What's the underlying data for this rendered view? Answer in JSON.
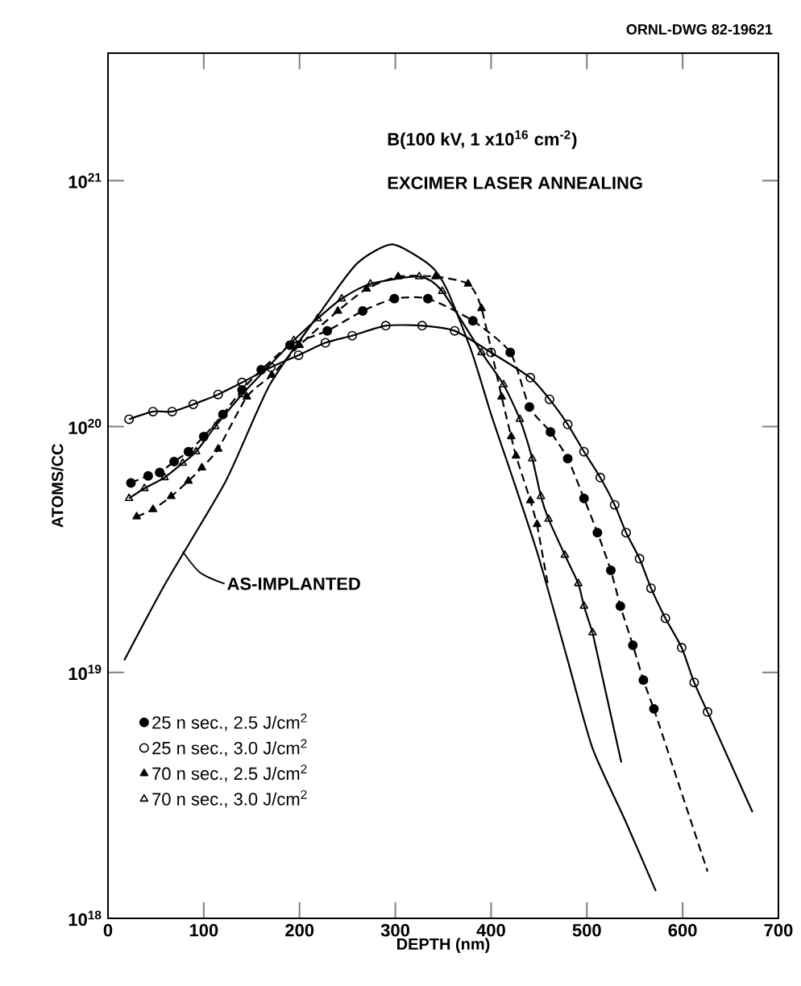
{
  "chart_data": {
    "type": "line",
    "title": "B(100 kV, 1 x10$^{16}$ cm$^{-2}$)",
    "subtitle": "EXCIMER LASER ANNEALING",
    "xlabel": "DEPTH (nm)",
    "ylabel": "ATOMS/CC",
    "log": "y",
    "legend": "bottom left",
    "xlim": [
      0,
      700
    ],
    "xticks": [
      0,
      100,
      200,
      300,
      400,
      500,
      600,
      700
    ],
    "ylim": [
      1e+18,
      3.3e+21
    ],
    "yticks": [
      {
        "value": 1e+18,
        "label": "10$^{18}$"
      },
      {
        "value": 1e+19,
        "label": "10$^{19}$"
      },
      {
        "value": 1e+20,
        "label": "10$^{20}$"
      },
      {
        "value": 1e+21,
        "label": "10$^{21}$"
      }
    ],
    "annotations": [
      "ORNL-DWG 82-19621",
      {
        "text": "AS-IMPLANTED",
        "x": 78,
        "y": 3.1e+19
      }
    ],
    "series": [
      {
        "name": "25 n sec., 2.5 J/cm$^{2}$",
        "type": "line",
        "marker": "circle",
        "line_style": "dashed",
        "color": "#000000",
        "x": [
          24,
          42,
          54,
          69,
          84,
          100,
          120,
          140,
          160,
          190,
          229,
          266,
          299,
          334,
          381,
          420,
          440,
          462,
          480,
          497,
          511,
          525,
          535,
          548,
          559,
          570
        ],
        "values": [
          5.9e+19,
          6.3e+19,
          6.5e+19,
          7.2e+19,
          7.9e+19,
          9.1e+19,
          1.12e+20,
          1.41e+20,
          1.7e+20,
          2.14e+20,
          2.45e+20,
          2.95e+20,
          3.31e+20,
          3.31e+20,
          2.69e+20,
          2e+20,
          1.2e+20,
          9.5e+19,
          7.4e+19,
          5.1e+19,
          3.7e+19,
          2.6e+19,
          1.86e+19,
          1.29e+19,
          9.3e+18,
          7.1e+18
        ]
      },
      {
        "name": "25 n sec., 3.0 J/cm$^{2}$",
        "type": "line",
        "marker": "circle-open",
        "line_style": "solid",
        "color": "#000000",
        "x": [
          22,
          47,
          67,
          89,
          115,
          140,
          170,
          199,
          227,
          255,
          290,
          328,
          362,
          400,
          441,
          461,
          480,
          497,
          514,
          529,
          541,
          555,
          567,
          582,
          599,
          612,
          626
        ],
        "values": [
          1.07e+20,
          1.15e+20,
          1.15e+20,
          1.23e+20,
          1.35e+20,
          1.51e+20,
          1.74e+20,
          1.95e+20,
          2.19e+20,
          2.34e+20,
          2.57e+20,
          2.57e+20,
          2.45e+20,
          2e+20,
          1.58e+20,
          1.29e+20,
          1.02e+20,
          7.9e+19,
          6.2e+19,
          4.8e+19,
          3.7e+19,
          2.9e+19,
          2.2e+19,
          1.66e+19,
          1.26e+19,
          9.1e+18,
          6.9e+18
        ]
      },
      {
        "name": "70 n sec., 2.5 J/cm$^{2}$",
        "type": "line",
        "marker": "triangle",
        "line_style": "dashed",
        "color": "#000000",
        "x": [
          30,
          47,
          66,
          84,
          98,
          115,
          145,
          171,
          200,
          240,
          270,
          303,
          342,
          376,
          390,
          411,
          421,
          426,
          441,
          448
        ],
        "values": [
          4.3e+19,
          4.6e+19,
          5.2e+19,
          6e+19,
          6.8e+19,
          8.1e+19,
          1.32e+20,
          1.62e+20,
          2.14e+20,
          2.95e+20,
          3.63e+20,
          4.07e+20,
          4.07e+20,
          3.8e+20,
          3.02e+20,
          1.32e+20,
          9.1e+19,
          7.6e+19,
          5e+19,
          4e+19
        ]
      },
      {
        "name": "70 n sec., 3.0 J/cm$^{2}$",
        "type": "line",
        "marker": "triangle-open",
        "line_style": "solid",
        "color": "#000000",
        "x": [
          22,
          38,
          59,
          78,
          92,
          112,
          140,
          194,
          219,
          244,
          274,
          325,
          349,
          390,
          413,
          430,
          443,
          452,
          460,
          477,
          491,
          497,
          506
        ],
        "values": [
          5.1e+19,
          5.6e+19,
          6.2e+19,
          7.1e+19,
          7.9e+19,
          1e+20,
          1.35e+20,
          2.24e+20,
          2.75e+20,
          3.31e+20,
          3.8e+20,
          4.07e+20,
          3.55e+20,
          2e+20,
          1.48e+20,
          1.07e+20,
          7.4e+19,
          5.2e+19,
          4.2e+19,
          3e+19,
          2.3e+19,
          1.86e+19,
          1.45e+19
        ]
      },
      {
        "type": "line",
        "marker": "none",
        "line_style": "dashed",
        "color": "#000000",
        "x": [
          570,
          626
        ],
        "values": [
          7.1e+18,
          1.55e+18
        ]
      },
      {
        "type": "line",
        "marker": "none",
        "line_style": "solid",
        "color": "#000000",
        "x": [
          626,
          673
        ],
        "values": [
          6.9e+18,
          2.7e+18
        ]
      },
      {
        "type": "line",
        "marker": "none",
        "line_style": "dashed",
        "color": "#000000",
        "x": [
          448,
          460
        ],
        "values": [
          4e+19,
          2.2e+19
        ]
      },
      {
        "type": "line",
        "marker": "none",
        "line_style": "solid",
        "color": "#000000",
        "x": [
          506,
          536
        ],
        "values": [
          1.45e+19,
          4.3e+18
        ]
      },
      {
        "type": "line",
        "marker": "none",
        "line_style": "solid",
        "color": "#000000",
        "x": [
          17,
          60,
          123,
          169,
          224,
          260,
          297,
          337,
          354,
          380,
          400,
          420,
          449,
          480,
          506,
          540,
          572
        ],
        "values": [
          1.12e+19,
          2.3e+19,
          6e+19,
          1.48e+20,
          3e+20,
          4.6e+20,
          5.5e+20,
          4.5e+20,
          3.6e+20,
          2e+20,
          1.12e+20,
          6.6e+19,
          3e+19,
          1.12e+19,
          4.9e+18,
          2.5e+18,
          1.29e+18
        ]
      }
    ]
  }
}
